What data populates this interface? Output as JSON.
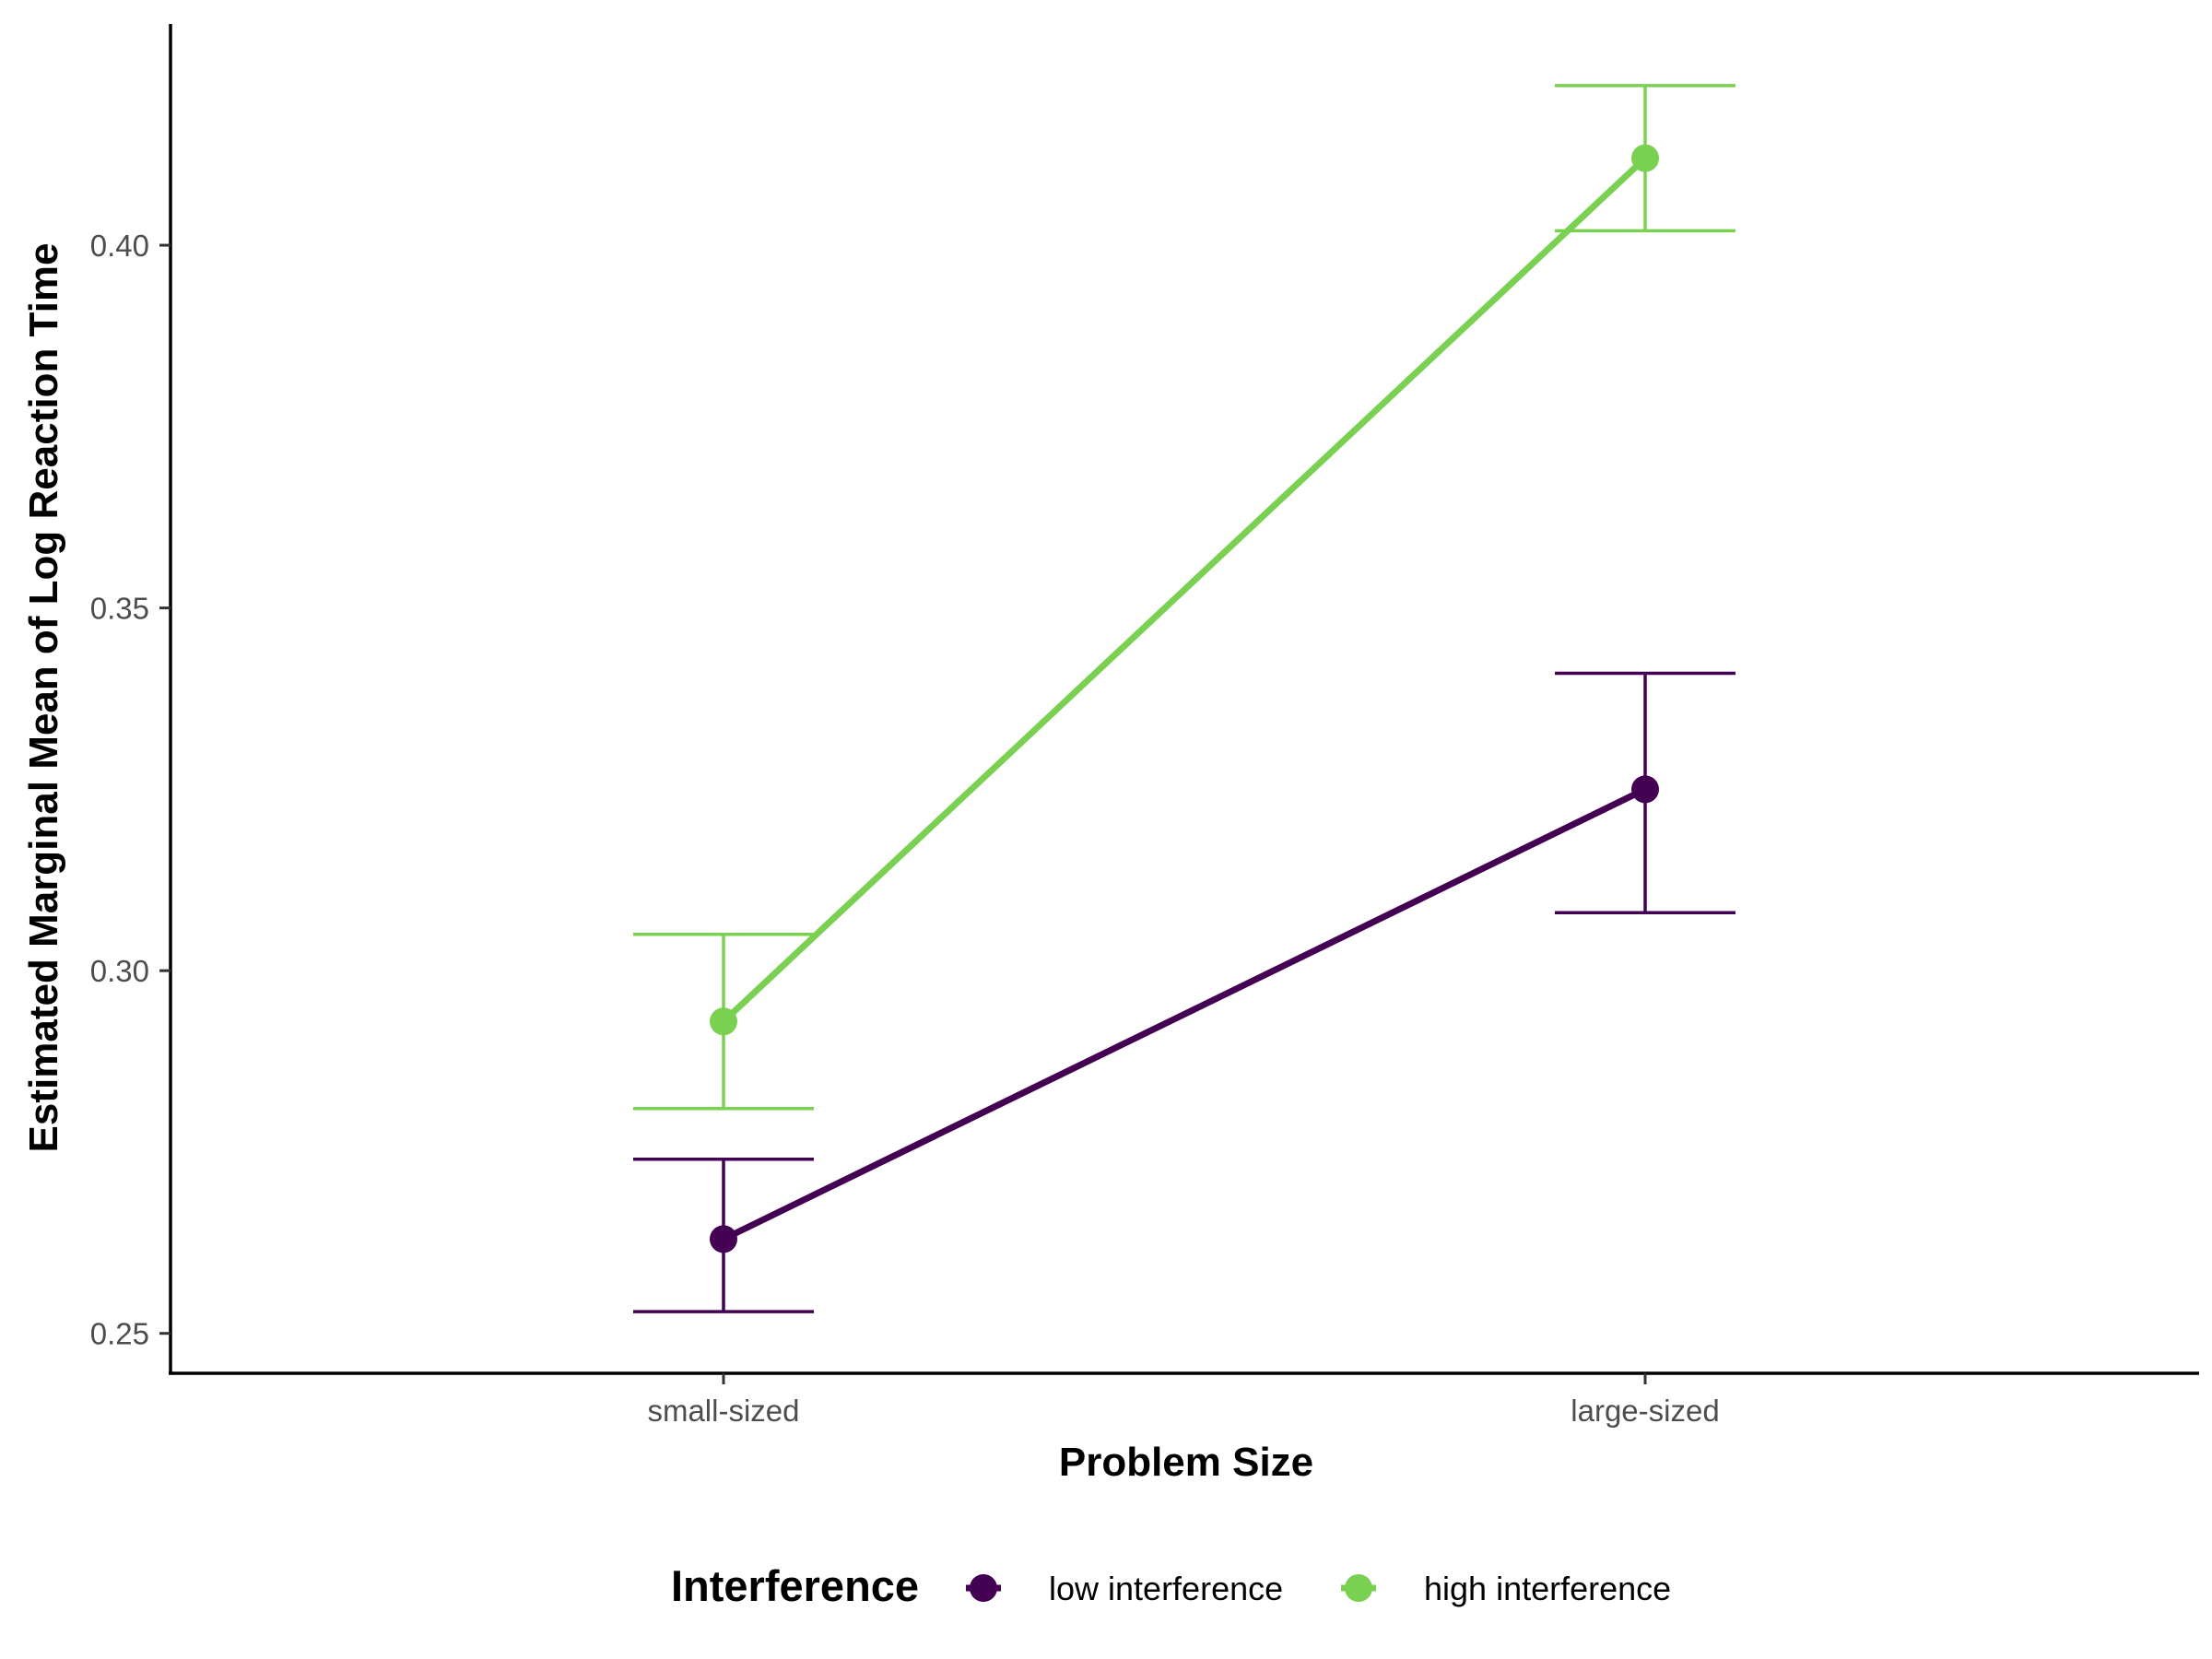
{
  "chart_data": {
    "type": "line",
    "title": "",
    "xlabel": "Problem Size",
    "ylabel": "Estimated Marginal Mean of Log Reaction Time",
    "categories": [
      "small-sized",
      "large-sized"
    ],
    "yticks": [
      0.25,
      0.3,
      0.35,
      0.4
    ],
    "ytick_labels": [
      "0.25",
      "0.30",
      "0.35",
      "0.40"
    ],
    "ylim": [
      0.2445,
      0.4305
    ],
    "grid": false,
    "legend": {
      "position": "bottom",
      "title": "Interference"
    },
    "series": [
      {
        "name": "low interference",
        "color": "#440154",
        "values": [
          0.263,
          0.325
        ],
        "lower": [
          0.253,
          0.308
        ],
        "upper": [
          0.274,
          0.341
        ]
      },
      {
        "name": "high interference",
        "color": "#7AD151",
        "values": [
          0.293,
          0.412
        ],
        "lower": [
          0.281,
          0.402
        ],
        "upper": [
          0.305,
          0.422
        ]
      }
    ]
  }
}
